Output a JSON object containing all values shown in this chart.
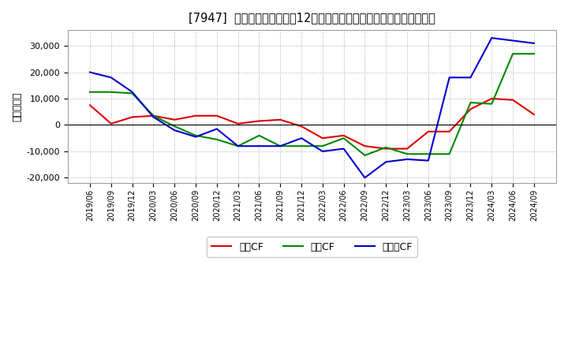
{
  "title": "[7947]  キャッシュフローの12か月移動合計の対前年同期増減額の推移",
  "ylabel": "（百万円）",
  "background_color": "#ffffff",
  "plot_bg_color": "#ffffff",
  "grid_color": "#aaaaaa",
  "ylim": [
    -22000,
    36000
  ],
  "yticks": [
    -20000,
    -10000,
    0,
    10000,
    20000,
    30000
  ],
  "dates": [
    "2019/06",
    "2019/09",
    "2019/12",
    "2020/03",
    "2020/06",
    "2020/09",
    "2020/12",
    "2021/03",
    "2021/06",
    "2021/09",
    "2021/12",
    "2022/03",
    "2022/06",
    "2022/09",
    "2022/12",
    "2023/03",
    "2023/06",
    "2023/09",
    "2023/12",
    "2024/03",
    "2024/06",
    "2024/09"
  ],
  "eigyo_cf": [
    7500,
    500,
    3000,
    3500,
    2000,
    3500,
    3500,
    500,
    1500,
    2000,
    -500,
    -5000,
    -4000,
    -8000,
    -9000,
    -9000,
    -2500,
    -2500,
    6000,
    10000,
    9500,
    4000
  ],
  "toshi_cf": [
    12500,
    12500,
    12000,
    3500,
    -500,
    -4000,
    -5500,
    -8000,
    -4000,
    -8000,
    -8000,
    -8000,
    -5000,
    -11500,
    -8500,
    -11000,
    -11000,
    -11000,
    8500,
    8000,
    27000,
    27000
  ],
  "free_cf": [
    20000,
    18000,
    12500,
    3000,
    -2000,
    -4500,
    -1500,
    -8000,
    -8000,
    -8000,
    -5000,
    -10000,
    -9000,
    -20000,
    -14000,
    -13000,
    -13500,
    18000,
    18000,
    33000,
    32000,
    31000
  ],
  "eigyo_color": "#dd0000",
  "toshi_color": "#008800",
  "free_color": "#0000cc",
  "legend_labels": [
    "営業CF",
    "投資CF",
    "フリーCF"
  ]
}
